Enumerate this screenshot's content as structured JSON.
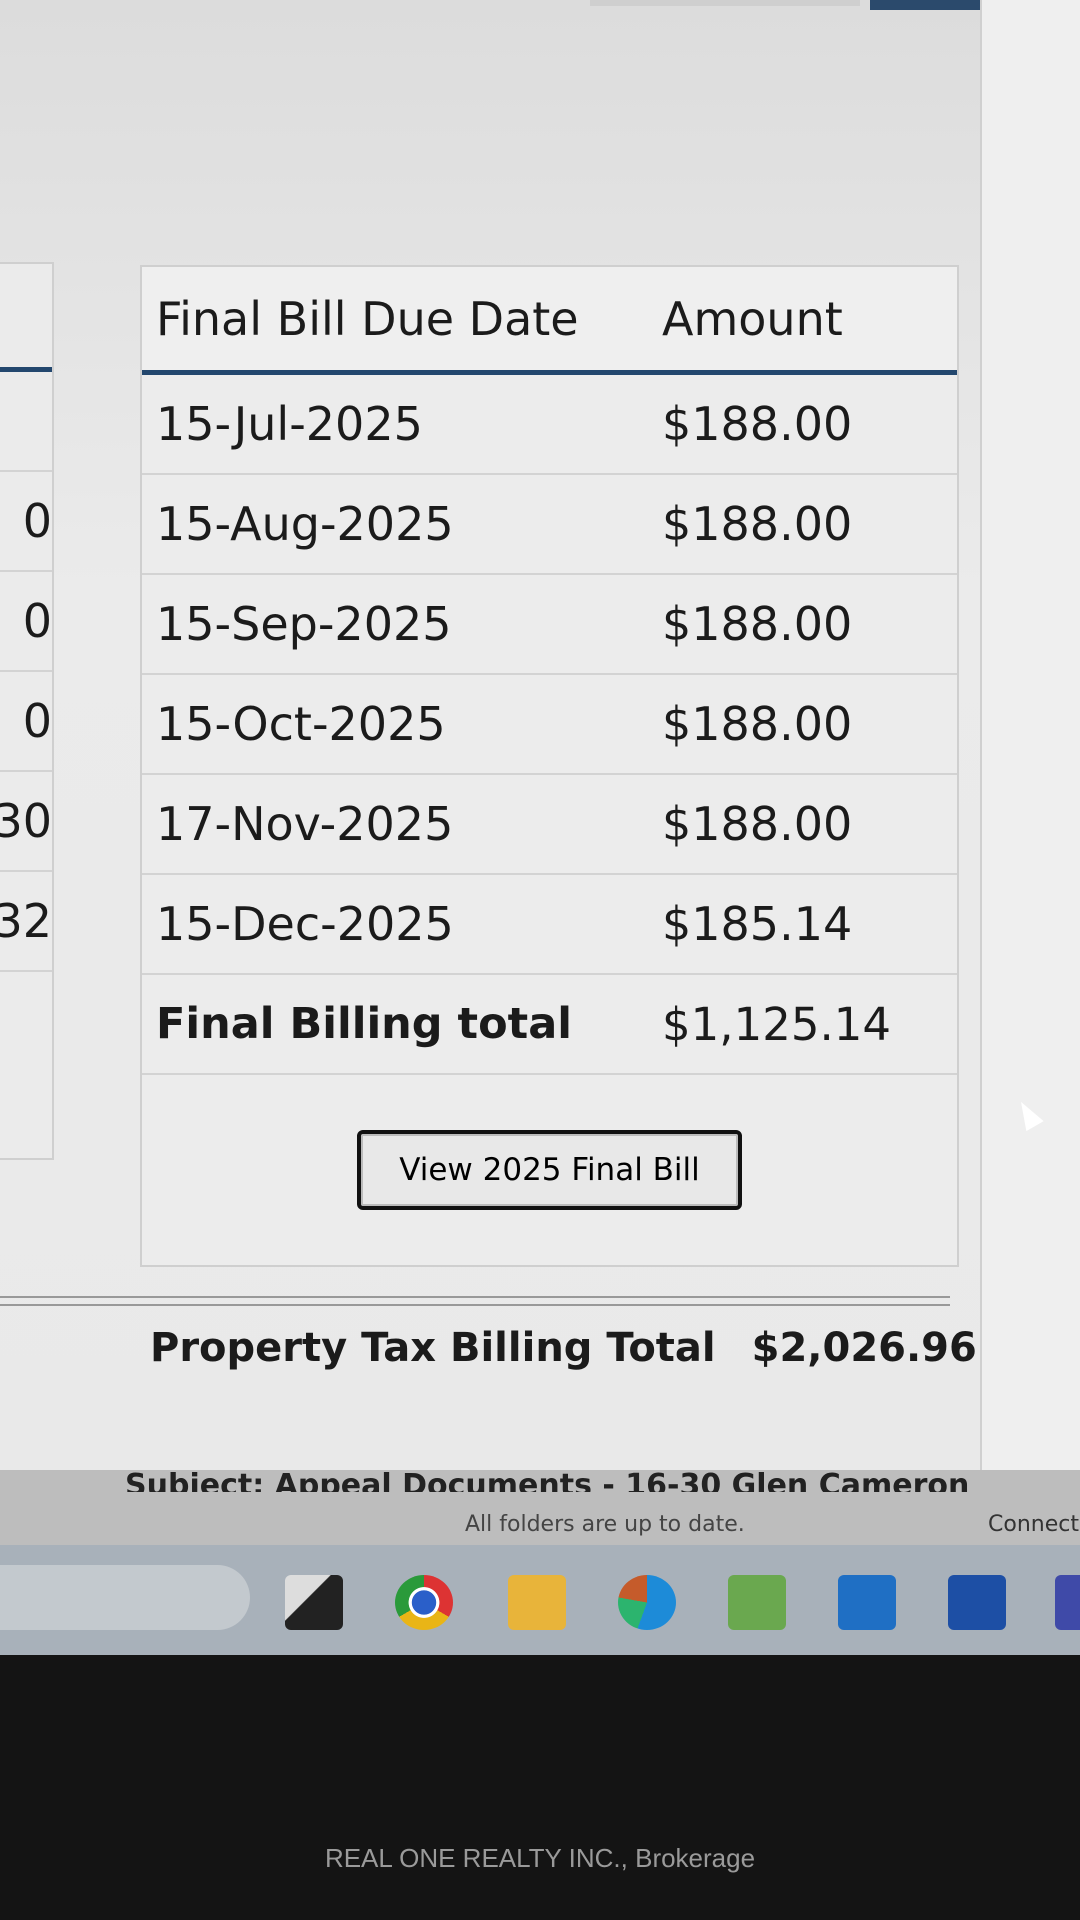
{
  "left_table": {
    "partial_values": [
      "0",
      "0",
      "0",
      "30",
      "32"
    ]
  },
  "final_bill": {
    "headers": {
      "due_date": "Final Bill Due Date",
      "amount": "Amount"
    },
    "rows": [
      {
        "date": "15-Jul-2025",
        "amount": "$188.00"
      },
      {
        "date": "15-Aug-2025",
        "amount": "$188.00"
      },
      {
        "date": "15-Sep-2025",
        "amount": "$188.00"
      },
      {
        "date": "15-Oct-2025",
        "amount": "$188.00"
      },
      {
        "date": "17-Nov-2025",
        "amount": "$188.00"
      },
      {
        "date": "15-Dec-2025",
        "amount": "$185.14"
      }
    ],
    "total_label": "Final Billing total",
    "total_amount": "$1,125.14",
    "view_button": "View 2025 Final Bill"
  },
  "property_tax": {
    "label": "Property Tax Billing Total",
    "amount": "$2,026.96"
  },
  "outlook": {
    "subject": "Subject: Appeal Documents - 16-30 Glen Cameron",
    "status": "All folders are up to date.",
    "connection": "Connect"
  },
  "taskbar": {
    "icons": [
      "task-view-icon",
      "chrome-icon",
      "file-explorer-icon",
      "edge-icon",
      "app-icon",
      "outlook-icon",
      "word-icon",
      "teams-icon"
    ]
  },
  "watermark": "REAL ONE REALTY INC., Brokerage"
}
